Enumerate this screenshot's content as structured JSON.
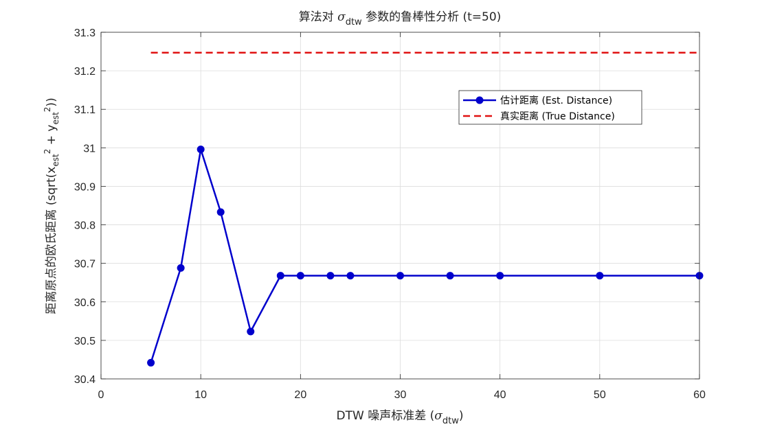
{
  "chart_data": {
    "type": "line",
    "title": {
      "prefix": "算法对 ",
      "symbol": "σ",
      "subscript": "dtw",
      "suffix": " 参数的鲁棒性分析 (t=50)"
    },
    "xlabel": {
      "prefix": "DTW 噪声标准差 (",
      "symbol": "σ",
      "subscript": "dtw",
      "suffix": ")"
    },
    "ylabel": {
      "p1": "距离原点的欧氏距离 (sqrt(x",
      "sub1": "est",
      "sup1": "2",
      "p2": " + y",
      "sub2": "est",
      "sup2": "2",
      "p3": "))"
    },
    "xlim": [
      0,
      60
    ],
    "ylim": [
      30.4,
      31.3
    ],
    "xticks": [
      "0",
      "10",
      "20",
      "30",
      "40",
      "50",
      "60"
    ],
    "yticks": [
      "30.4",
      "30.5",
      "30.6",
      "30.7",
      "30.8",
      "30.9",
      "31",
      "31.1",
      "31.2",
      "31.3"
    ],
    "grid": true,
    "legend_position": "upper-right",
    "series": [
      {
        "name": "估计距离 (Est. Distance)",
        "color": "#0000CC",
        "style": "solid-marker",
        "x": [
          5,
          8,
          10,
          12,
          15,
          18,
          20,
          23,
          25,
          30,
          35,
          40,
          50,
          60
        ],
        "y": [
          30.442,
          30.688,
          30.996,
          30.833,
          30.523,
          30.668,
          30.668,
          30.668,
          30.668,
          30.668,
          30.668,
          30.668,
          30.668,
          30.668
        ]
      },
      {
        "name": "真实距离 (True Distance)",
        "color": "#E01010",
        "style": "dashed",
        "x": [
          5,
          60
        ],
        "y": [
          31.247,
          31.247
        ]
      }
    ]
  }
}
